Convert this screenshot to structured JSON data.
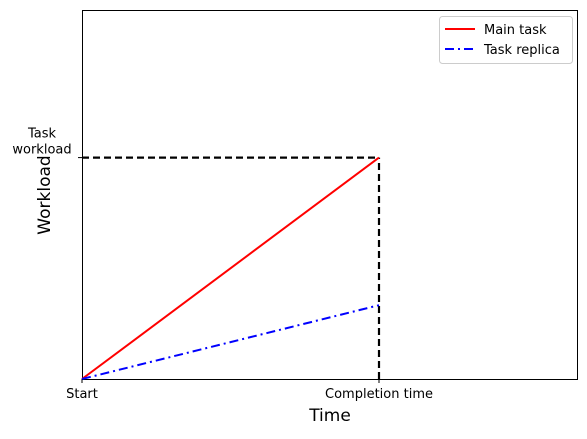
{
  "chart_data": {
    "type": "line",
    "title": "",
    "xlabel": "Time",
    "ylabel": "Workload",
    "x_ticks": [
      {
        "value": 0,
        "label": "Start"
      },
      {
        "value": 0.6,
        "label": "Completion time"
      }
    ],
    "y_ticks": [
      {
        "value": 0.6,
        "label": "Task\nworkload"
      }
    ],
    "xlim": [
      0,
      1
    ],
    "ylim": [
      0,
      1
    ],
    "grid": false,
    "legend_position": "top-right",
    "series": [
      {
        "name": "Main task",
        "color": "#ff0000",
        "style": "solid",
        "x": [
          0,
          0.6
        ],
        "y": [
          0,
          0.6
        ]
      },
      {
        "name": "Task replica",
        "color": "#0000ff",
        "style": "dash-dot",
        "x": [
          0,
          0.6
        ],
        "y": [
          0,
          0.2
        ]
      }
    ],
    "reference_lines": [
      {
        "color": "#000000",
        "style": "dashed",
        "x": [
          0,
          0.6
        ],
        "y": [
          0.6,
          0.6
        ]
      },
      {
        "color": "#000000",
        "style": "dashed",
        "x": [
          0.6,
          0.6
        ],
        "y": [
          0,
          0.6
        ]
      }
    ]
  }
}
